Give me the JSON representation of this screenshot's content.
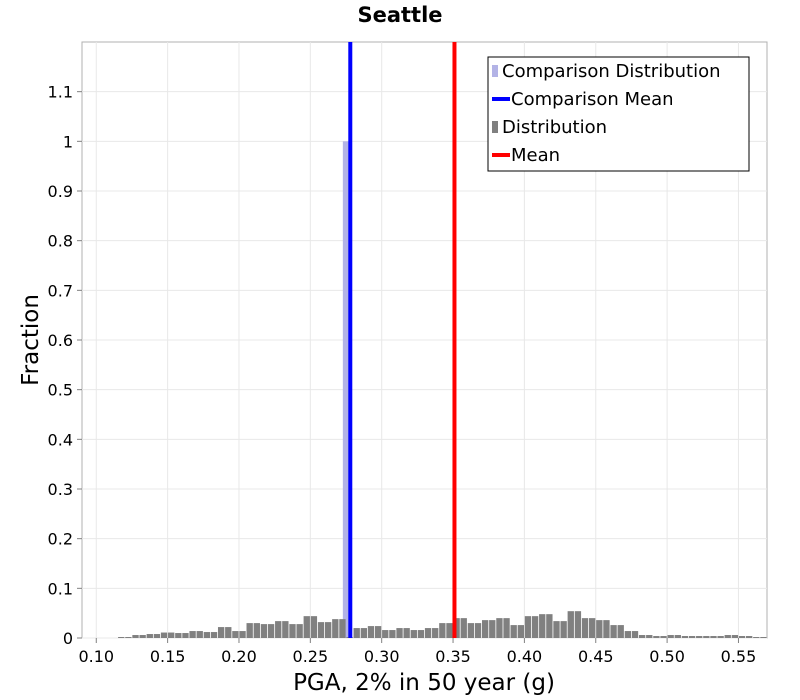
{
  "chart_data": {
    "type": "bar",
    "title": "Seattle",
    "xlabel": "PGA, 2% in 50 year (g)",
    "ylabel": "Fraction",
    "xlim": [
      0.09,
      0.57
    ],
    "ylim": [
      0,
      1.2
    ],
    "grid": true,
    "legend_position": "top-right",
    "x_ticks": [
      0.1,
      0.15,
      0.2,
      0.25,
      0.3,
      0.35,
      0.4,
      0.45,
      0.5,
      0.55
    ],
    "x_tick_labels": [
      "0.10",
      "0.15",
      "0.20",
      "0.25",
      "0.30",
      "0.35",
      "0.40",
      "0.45",
      "0.50",
      "0.55"
    ],
    "y_ticks": [
      0,
      0.1,
      0.2,
      0.3,
      0.4,
      0.5,
      0.6,
      0.7,
      0.8,
      0.9,
      1,
      1.1
    ],
    "y_tick_labels": [
      "0",
      "0.1",
      "0.2",
      "0.3",
      "0.4",
      "0.5",
      "0.6",
      "0.7",
      "0.8",
      "0.9",
      "1",
      "1.1"
    ],
    "bin_width": 0.005,
    "series": [
      {
        "name": "Comparison Distribution",
        "kind": "histogram",
        "color": "#b3b3e6",
        "x": [
          0.275
        ],
        "values": [
          1.0
        ]
      },
      {
        "name": "Comparison Mean",
        "kind": "vline",
        "color": "#0000ff",
        "x": 0.278
      },
      {
        "name": "Distribution",
        "kind": "histogram",
        "color": "#808080",
        "x": [
          0.1075,
          0.1125,
          0.1175,
          0.1225,
          0.1275,
          0.1325,
          0.1375,
          0.1425,
          0.1475,
          0.1525,
          0.1575,
          0.1625,
          0.1675,
          0.1725,
          0.1775,
          0.1825,
          0.1875,
          0.1925,
          0.1975,
          0.2025,
          0.2075,
          0.2125,
          0.2175,
          0.2225,
          0.2275,
          0.2325,
          0.2375,
          0.2425,
          0.2475,
          0.2525,
          0.2575,
          0.2625,
          0.2675,
          0.2725,
          0.2775,
          0.2825,
          0.2875,
          0.2925,
          0.2975,
          0.3025,
          0.3075,
          0.3125,
          0.3175,
          0.3225,
          0.3275,
          0.3325,
          0.3375,
          0.3425,
          0.3475,
          0.3525,
          0.3575,
          0.3625,
          0.3675,
          0.3725,
          0.3775,
          0.3825,
          0.3875,
          0.3925,
          0.3975,
          0.4025,
          0.4075,
          0.4125,
          0.4175,
          0.4225,
          0.4275,
          0.4325,
          0.4375,
          0.4425,
          0.4475,
          0.4525,
          0.4575,
          0.4625,
          0.4675,
          0.4725,
          0.4775,
          0.4825,
          0.4875,
          0.4925,
          0.4975,
          0.5025,
          0.5075,
          0.5125,
          0.5175,
          0.5225,
          0.5275,
          0.5325,
          0.5375,
          0.5425,
          0.5475,
          0.5525,
          0.5575,
          0.5625,
          0.5675
        ],
        "values": [
          0.0,
          0.0,
          0.002,
          0.002,
          0.006,
          0.006,
          0.008,
          0.008,
          0.011,
          0.011,
          0.01,
          0.01,
          0.014,
          0.014,
          0.012,
          0.012,
          0.022,
          0.022,
          0.014,
          0.014,
          0.03,
          0.03,
          0.028,
          0.028,
          0.034,
          0.034,
          0.028,
          0.028,
          0.044,
          0.044,
          0.032,
          0.032,
          0.038,
          0.038,
          0.002,
          0.02,
          0.02,
          0.024,
          0.024,
          0.016,
          0.016,
          0.02,
          0.02,
          0.016,
          0.016,
          0.02,
          0.02,
          0.03,
          0.03,
          0.04,
          0.04,
          0.03,
          0.03,
          0.036,
          0.036,
          0.04,
          0.04,
          0.026,
          0.026,
          0.044,
          0.044,
          0.048,
          0.048,
          0.034,
          0.034,
          0.054,
          0.054,
          0.04,
          0.04,
          0.036,
          0.036,
          0.026,
          0.026,
          0.014,
          0.014,
          0.006,
          0.006,
          0.004,
          0.004,
          0.006,
          0.006,
          0.004,
          0.004,
          0.004,
          0.004,
          0.004,
          0.004,
          0.006,
          0.006,
          0.004,
          0.004,
          0.002,
          0.002
        ]
      },
      {
        "name": "Mean",
        "kind": "vline",
        "color": "#ff0000",
        "x": 0.351
      }
    ]
  }
}
